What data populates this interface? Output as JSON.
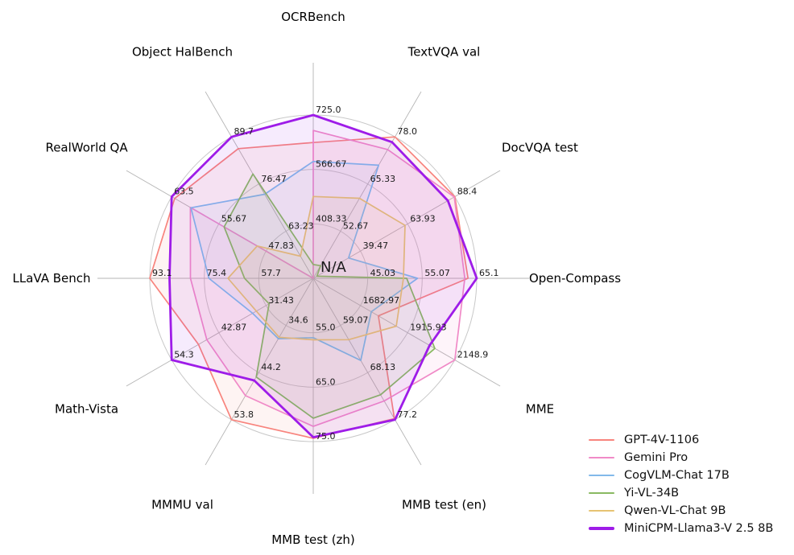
{
  "figure": {
    "background": "#ffffff",
    "center_label": "N/A"
  },
  "chart_data": {
    "type": "radar",
    "title": "",
    "center_label": "N/A",
    "legend_position": "bottom-right",
    "grid": {
      "rings": 3,
      "ring_color": "#c8c8c8",
      "spoke_color": "#b4b4b4"
    },
    "axes": [
      {
        "label": "OCRBench",
        "min": 250,
        "max": 725,
        "ticks": [
          "408.33",
          "566.67",
          "725.0"
        ]
      },
      {
        "label": "TextVQA val",
        "min": 40,
        "max": 78.0,
        "ticks": [
          "52.67",
          "65.33",
          "78.0"
        ]
      },
      {
        "label": "DocVQA test",
        "min": 15,
        "max": 88.4,
        "ticks": [
          "39.47",
          "63.93",
          "88.4"
        ]
      },
      {
        "label": "Open-Compass",
        "min": 35,
        "max": 65.1,
        "ticks": [
          "45.03",
          "55.07",
          "65.1"
        ]
      },
      {
        "label": "MME",
        "min": 1450,
        "max": 2148.9,
        "ticks": [
          "1682.97",
          "1915.93",
          "2148.9"
        ]
      },
      {
        "label": "MMB test (en)",
        "min": 50,
        "max": 77.2,
        "ticks": [
          "59.07",
          "68.13",
          "77.2"
        ]
      },
      {
        "label": "MMB test (zh)",
        "min": 45,
        "max": 75.0,
        "ticks": [
          "55.0",
          "65.0",
          "75.0"
        ]
      },
      {
        "label": "MMMU val",
        "min": 25,
        "max": 53.8,
        "ticks": [
          "34.6",
          "44.2",
          "53.8"
        ]
      },
      {
        "label": "Math-Vista",
        "min": 20,
        "max": 54.3,
        "ticks": [
          "31.43",
          "42.87",
          "54.3"
        ]
      },
      {
        "label": "LLaVA Bench",
        "min": 40,
        "max": 93.1,
        "ticks": [
          "57.7",
          "75.4",
          "93.1"
        ]
      },
      {
        "label": "RealWorld QA",
        "min": 40,
        "max": 63.5,
        "ticks": [
          "47.83",
          "55.67",
          "63.5"
        ]
      },
      {
        "label": "Object HalBench",
        "min": 50,
        "max": 89.7,
        "ticks": [
          "63.23",
          "76.47",
          "89.7"
        ]
      }
    ],
    "series": [
      {
        "name": "GPT-4V-1106",
        "color": "#f8847d",
        "line_width": 1.7,
        "values": [
          645,
          78.0,
          88.4,
          63.5,
          1771.5,
          77.0,
          74.4,
          53.8,
          47.8,
          93.1,
          63.0,
          86.4
        ]
      },
      {
        "name": "Gemini Pro",
        "color": "#f08ac7",
        "line_width": 1.7,
        "values": [
          680,
          74.6,
          88.1,
          62.9,
          2148.9,
          73.6,
          72.2,
          48.9,
          45.8,
          79.9,
          60.4,
          null
        ]
      },
      {
        "name": "CogVLM-Chat 17B",
        "color": "#82b9ea",
        "line_width": 1.7,
        "values": [
          590,
          70.4,
          33.3,
          54.2,
          1736.6,
          65.8,
          55.9,
          37.3,
          34.7,
          73.9,
          60.3,
          73.6
        ]
      },
      {
        "name": "Yi-VL-34B",
        "color": "#89b961",
        "line_width": 1.7,
        "values": [
          290,
          43.4,
          16.9,
          52.2,
          2050.2,
          72.4,
          70.7,
          45.1,
          30.7,
          62.3,
          54.8,
          79.3
        ]
      },
      {
        "name": "Qwen-VL-Chat 9B",
        "color": "#e6c372",
        "line_width": 1.7,
        "values": [
          488,
          61.5,
          62.6,
          51.6,
          1860.0,
          61.8,
          56.3,
          37.0,
          33.8,
          67.7,
          49.3,
          56.2
        ]
      },
      {
        "name": "MiniCPM-Llama3-V 2.5 8B",
        "color": "#9e1ce8",
        "line_width": 2.8,
        "values": [
          725,
          76.6,
          84.8,
          65.1,
          2024.6,
          77.2,
          74.2,
          45.8,
          54.3,
          86.7,
          63.5,
          89.7
        ]
      }
    ]
  }
}
